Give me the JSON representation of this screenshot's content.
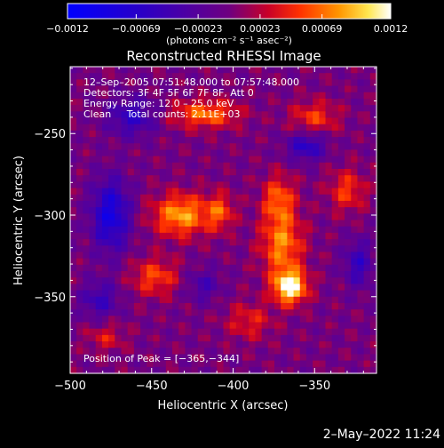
{
  "chart_data": {
    "type": "heatmap",
    "title": "Reconstructed RHESSI Image",
    "xlabel": "Heliocentric X (arcsec)",
    "ylabel": "Heliocentric Y (arcsec)",
    "xlim": [
      -500,
      -312
    ],
    "ylim": [
      -397,
      -209
    ],
    "x_ticks": [
      -500,
      -450,
      -400,
      -350
    ],
    "x_tick_labels": [
      "−500",
      "−450",
      "−400",
      "−350"
    ],
    "y_ticks": [
      -250,
      -300,
      -350
    ],
    "y_tick_labels": [
      "−250",
      "−300",
      "−350"
    ],
    "colorbar": {
      "min": -0.0012,
      "max": 0.0012,
      "ticks": [
        -0.0012,
        -0.00069,
        -0.00023,
        0.00023,
        0.00069,
        0.0012
      ],
      "tick_labels": [
        "−0.0012",
        "−0.00069",
        "−0.00023",
        "0.00023",
        "0.00069",
        "0.0012"
      ],
      "unit_label": "(photons cm⁻² s⁻¹ asec⁻²)"
    },
    "annotations": {
      "time_range": "12–Sep–2005 07:51:48.000 to 07:57:48.000",
      "detectors": "Detectors: 3F 4F 5F 6F 7F 8F, Att 0",
      "energy": "Energy Range: 12.0 – 25.0 keV",
      "method": "Clean     Total counts: 2.11E+03",
      "peak": "Position of Peak = [−365,−344]"
    },
    "peak_position": [
      -365,
      -344
    ],
    "sources": [
      {
        "x": -365,
        "y": -344,
        "amp": 0.00125,
        "sx": 7,
        "sy": 7
      },
      {
        "x": -370,
        "y": -318,
        "amp": 0.00075,
        "sx": 9,
        "sy": 14
      },
      {
        "x": -372,
        "y": -290,
        "amp": 0.0006,
        "sx": 7,
        "sy": 10
      },
      {
        "x": -432,
        "y": -300,
        "amp": 0.00085,
        "sx": 12,
        "sy": 9
      },
      {
        "x": -408,
        "y": -298,
        "amp": 0.00055,
        "sx": 6,
        "sy": 8
      },
      {
        "x": -448,
        "y": -338,
        "amp": 0.00055,
        "sx": 10,
        "sy": 8
      },
      {
        "x": -417,
        "y": -238,
        "amp": 0.0007,
        "sx": 14,
        "sy": 6
      },
      {
        "x": -350,
        "y": -240,
        "amp": 0.0005,
        "sx": 10,
        "sy": 7
      },
      {
        "x": -390,
        "y": -365,
        "amp": 0.0004,
        "sx": 10,
        "sy": 8
      },
      {
        "x": -330,
        "y": -285,
        "amp": 0.0005,
        "sx": 8,
        "sy": 9
      },
      {
        "x": -478,
        "y": -375,
        "amp": 0.00035,
        "sx": 8,
        "sy": 6
      },
      {
        "x": -475,
        "y": -300,
        "amp": -0.0009,
        "sx": 8,
        "sy": 15
      },
      {
        "x": -462,
        "y": -240,
        "amp": -0.0006,
        "sx": 10,
        "sy": 8
      },
      {
        "x": -355,
        "y": -258,
        "amp": -0.00065,
        "sx": 8,
        "sy": 6
      },
      {
        "x": -323,
        "y": -330,
        "amp": -0.00055,
        "sx": 6,
        "sy": 10
      },
      {
        "x": -482,
        "y": -352,
        "amp": -0.0005,
        "sx": 8,
        "sy": 8
      },
      {
        "x": -418,
        "y": -343,
        "amp": -0.0004,
        "sx": 7,
        "sy": 7
      }
    ],
    "grid": false
  },
  "footer": {
    "timestamp": "2–May–2022 11:24"
  }
}
